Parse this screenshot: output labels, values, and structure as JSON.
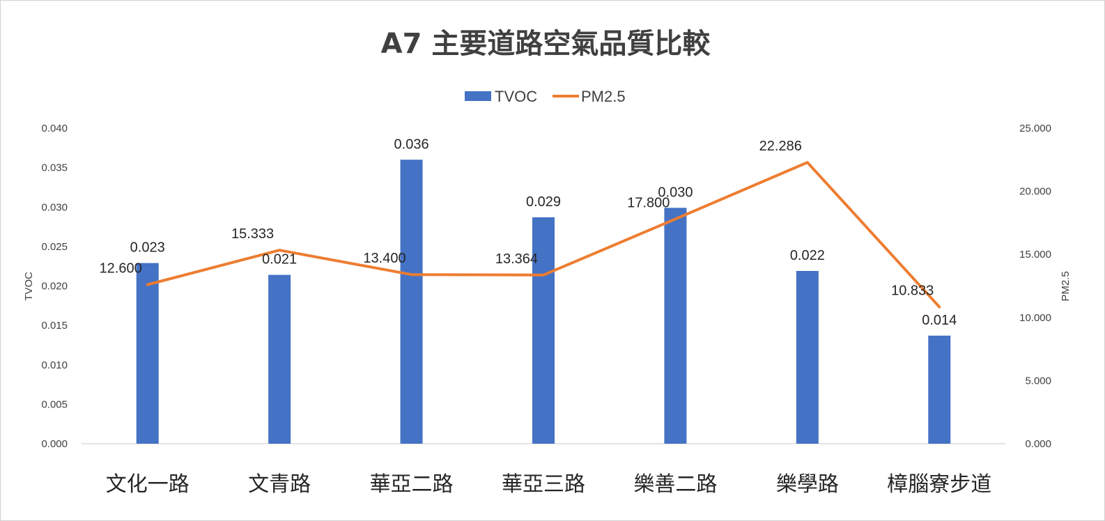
{
  "chart_data": {
    "type": "bar",
    "title": "A7 主要道路空氣品質比較",
    "categories": [
      "文化一路",
      "文青路",
      "華亞二路",
      "華亞三路",
      "樂善二路",
      "樂學路",
      "樟腦寮步道"
    ],
    "series": [
      {
        "name": "TVOC",
        "type": "bar",
        "axis": "left",
        "values": [
          0.023,
          0.021,
          0.036,
          0.029,
          0.03,
          0.022,
          0.014
        ],
        "bar_values": [
          0.0229,
          0.0214,
          0.036,
          0.0287,
          0.0299,
          0.0219,
          0.0137
        ],
        "labels": [
          "0.023",
          "0.021",
          "0.036",
          "0.029",
          "0.030",
          "0.022",
          "0.014"
        ],
        "color": "#4472C4"
      },
      {
        "name": "PM2.5",
        "type": "line",
        "axis": "right",
        "values": [
          12.6,
          15.333,
          13.4,
          13.364,
          17.8,
          22.286,
          10.833
        ],
        "labels": [
          "12.600",
          "15.333",
          "13.400",
          "13.364",
          "17.800",
          "22.286",
          "10.833"
        ],
        "color": "#ED7D31"
      }
    ],
    "ylabel": "TVOC",
    "y2label": "PM2.5",
    "ylim": [
      0,
      0.04
    ],
    "y2lim": [
      0,
      25
    ],
    "yticks": [
      "0.000",
      "0.005",
      "0.010",
      "0.015",
      "0.020",
      "0.025",
      "0.030",
      "0.035",
      "0.040"
    ],
    "y2ticks": [
      "0.000",
      "5.000",
      "10.000",
      "15.000",
      "20.000",
      "25.000"
    ],
    "legend_position": "top",
    "grid": false
  }
}
